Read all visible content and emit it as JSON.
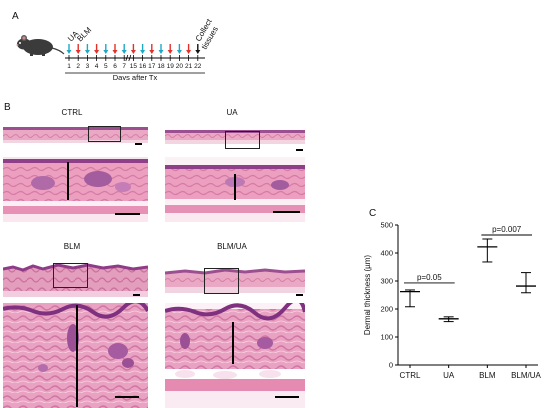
{
  "panel_a": {
    "label": "A",
    "ua_label": "UA",
    "blm_label": "BLM",
    "collect_label": "Collect\ntissues",
    "days": [
      "1",
      "2",
      "3",
      "4",
      "5",
      "6",
      "7",
      "15",
      "16",
      "17",
      "18",
      "19",
      "20",
      "21",
      "22"
    ],
    "arrow_colors": [
      "#1fa8c6",
      "#e2302b",
      "#1fa8c6",
      "#e2302b",
      "#1fa8c6",
      "#e2302b",
      "#1fa8c6",
      "#e2302b",
      "#1fa8c6",
      "#e2302b",
      "#1fa8c6",
      "#e2302b",
      "#1fa8c6",
      "#e2302b",
      "#111111"
    ],
    "xlabel": "Days after Tx"
  },
  "panel_b": {
    "label": "B",
    "groups": [
      "CTRL",
      "UA",
      "BLM",
      "BLM/UA"
    ]
  },
  "panel_c": {
    "label": "C",
    "p1": "p=0.05",
    "p2": "p=0.007"
  },
  "chart_data": {
    "type": "scatter",
    "ylabel": "Dermal thickness (µm)",
    "xlabel": "",
    "categories": [
      "CTRL",
      "UA",
      "BLM",
      "BLM/UA"
    ],
    "mean": [
      262,
      165,
      422,
      282
    ],
    "error_low": [
      208,
      155,
      368,
      258
    ],
    "error_high": [
      268,
      172,
      450,
      330
    ],
    "ylim": [
      0,
      500
    ],
    "yticks": [
      0,
      100,
      200,
      300,
      400,
      500
    ],
    "annotations": [
      {
        "text": "p=0.05",
        "from": "CTRL",
        "to": "UA"
      },
      {
        "text": "p=0.007",
        "from": "BLM",
        "to": "BLM/UA"
      }
    ],
    "grid": false
  }
}
